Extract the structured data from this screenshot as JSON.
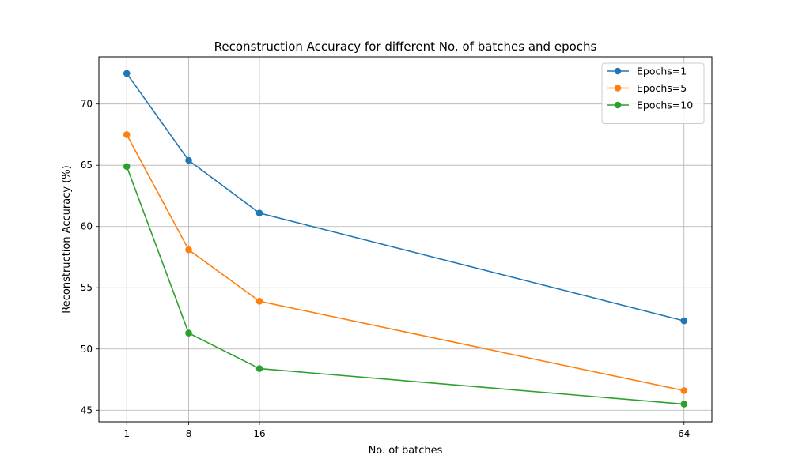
{
  "chart_data": {
    "type": "line",
    "title": "Reconstruction Accuracy for different No. of batches and epochs",
    "xlabel": "No. of batches",
    "ylabel": "Reconstruction Accuracy (%)",
    "x": [
      1,
      8,
      16,
      64
    ],
    "xticks": [
      "1",
      "8",
      "16",
      "64"
    ],
    "xlim": [
      -2.15,
      67.15
    ],
    "ylim": [
      44.05,
      73.85
    ],
    "yticks": [
      "45",
      "50",
      "55",
      "60",
      "65",
      "70"
    ],
    "grid": true,
    "legend": "upper right",
    "series": [
      {
        "name": "Epochs=1",
        "color": "#1f77b4",
        "values": [
          72.5,
          65.4,
          61.1,
          52.3
        ]
      },
      {
        "name": "Epochs=5",
        "color": "#ff7f0e",
        "values": [
          67.5,
          58.1,
          53.9,
          46.6
        ]
      },
      {
        "name": "Epochs=10",
        "color": "#2ca02c",
        "values": [
          64.9,
          51.3,
          48.4,
          45.5
        ]
      }
    ]
  }
}
